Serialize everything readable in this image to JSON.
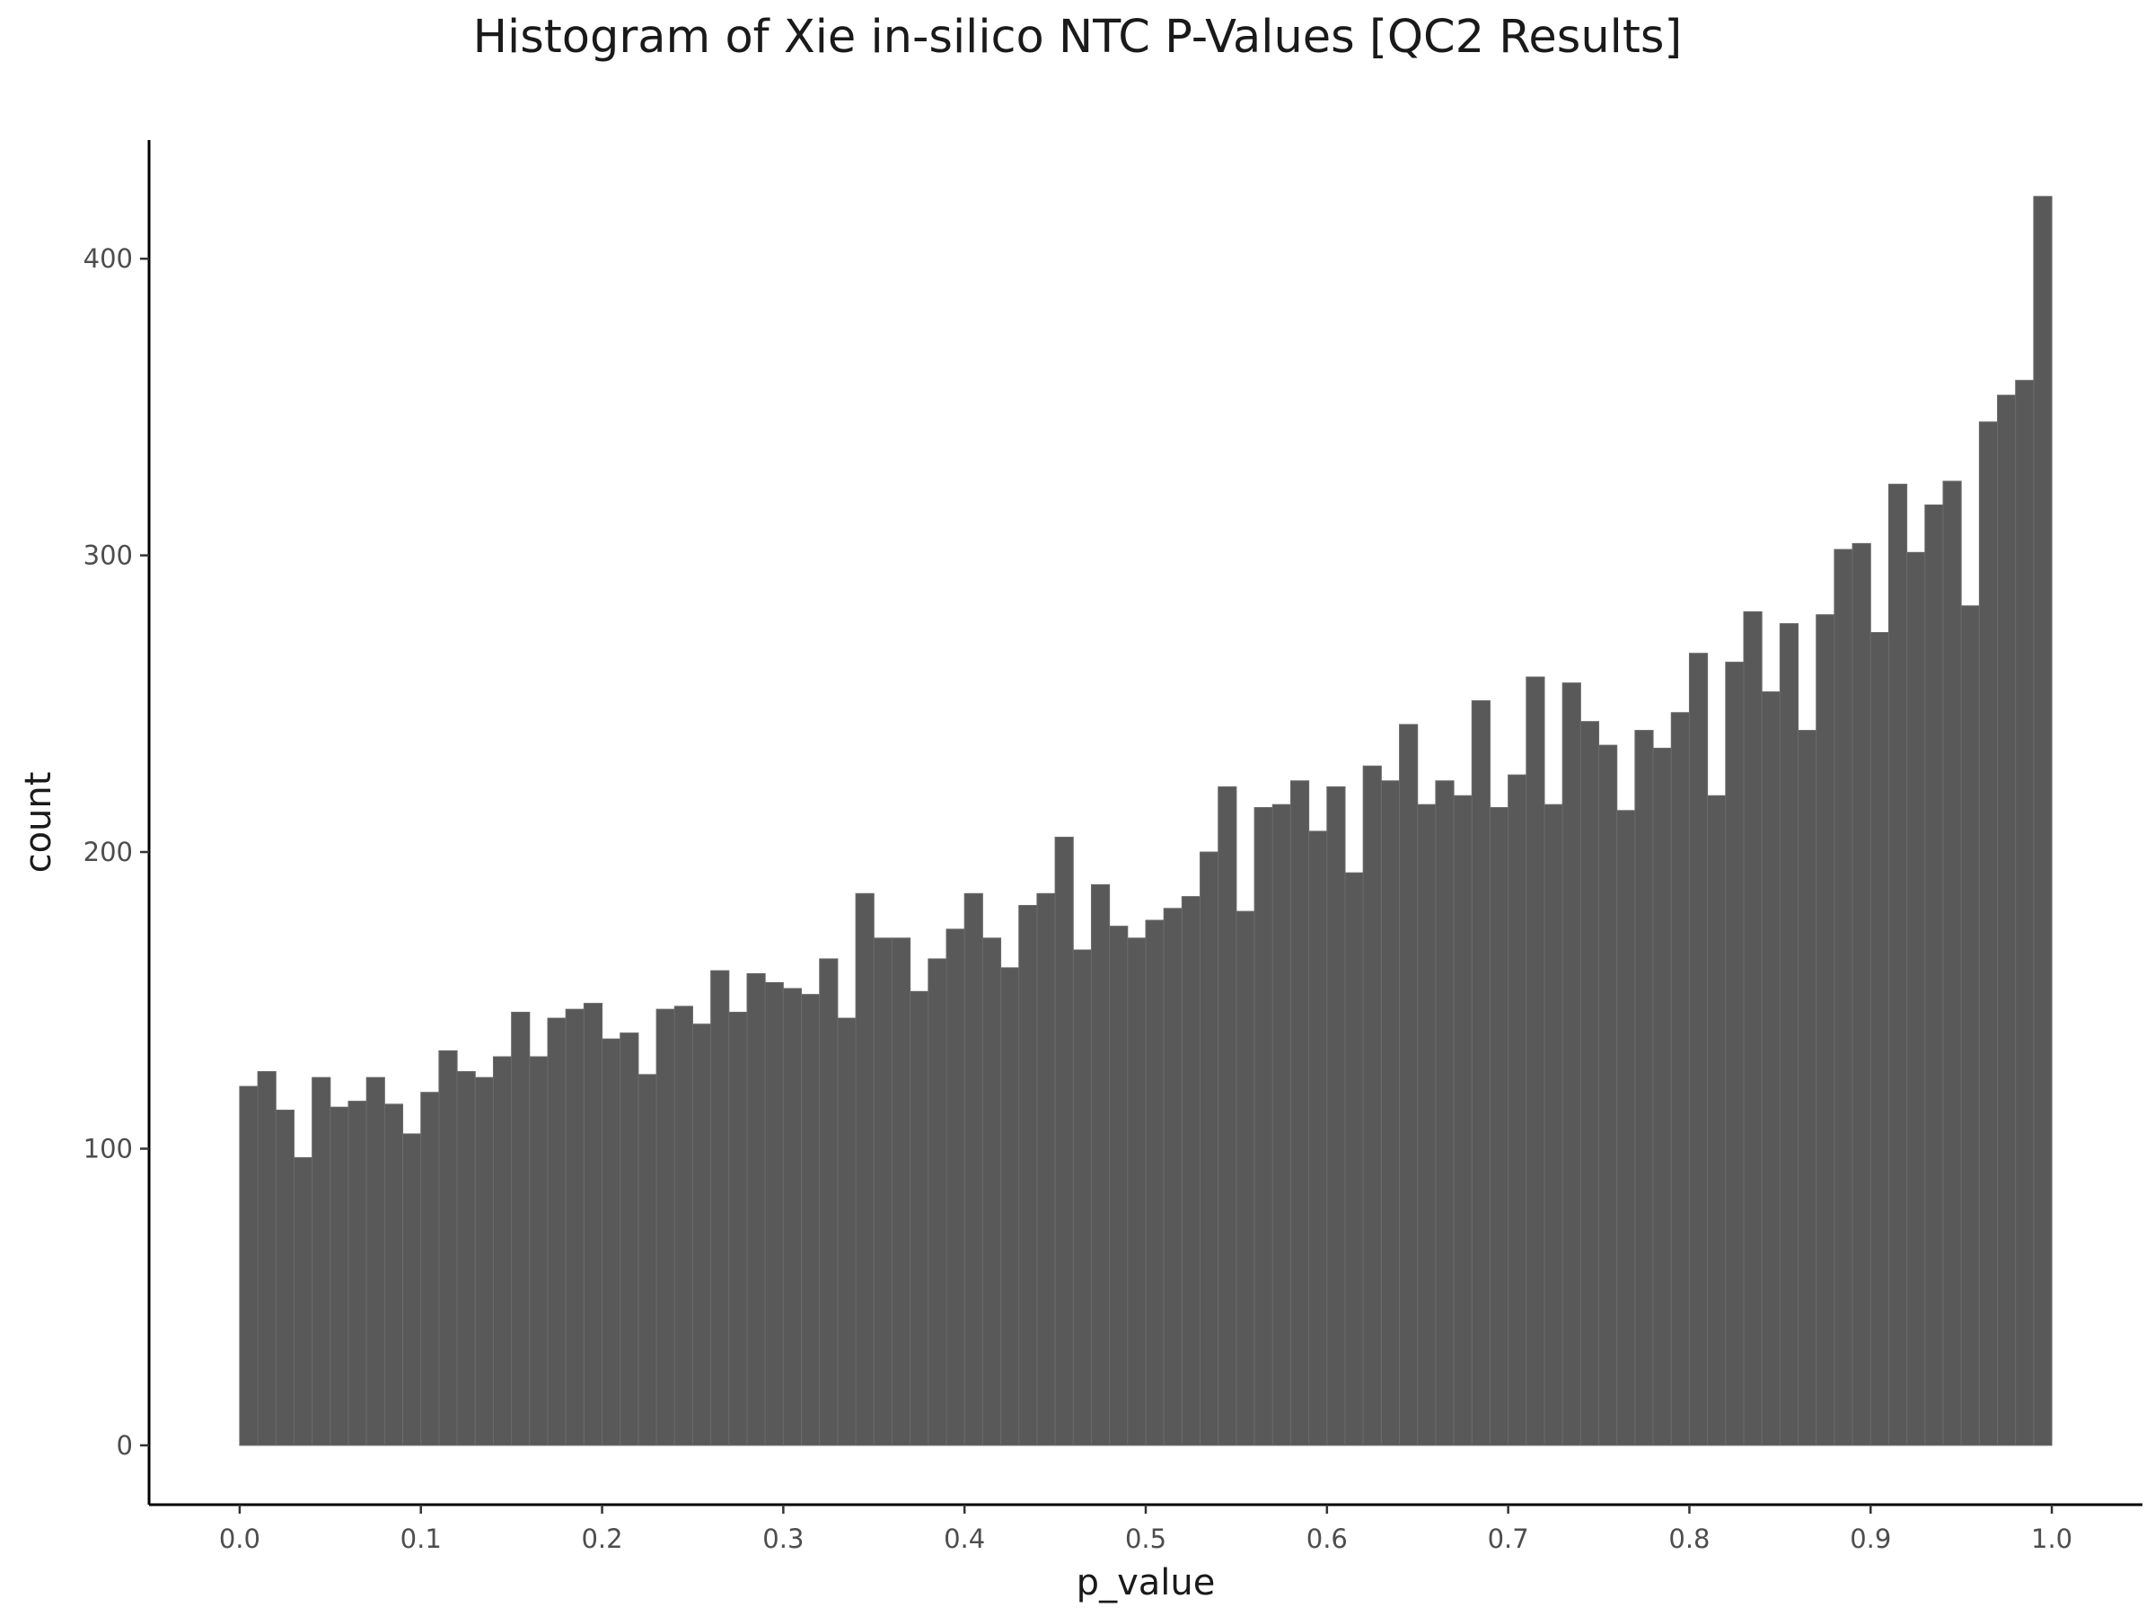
{
  "chart_data": {
    "type": "bar",
    "title": "Histogram of Xie in-silico NTC P-Values [QC2 Results]",
    "xlabel": "p_value",
    "ylabel": "count",
    "xlim": [
      -0.05,
      1.05
    ],
    "ylim": [
      -20,
      440
    ],
    "x_ticks": [
      "0.0",
      "0.1",
      "0.2",
      "0.3",
      "0.4",
      "0.5",
      "0.6",
      "0.7",
      "0.8",
      "0.9",
      "1.0"
    ],
    "y_ticks": [
      "0",
      "100",
      "200",
      "300",
      "400"
    ],
    "bin_range": [
      0,
      1
    ],
    "bin_count": 100,
    "values": [
      121,
      126,
      113,
      97,
      124,
      114,
      116,
      124,
      115,
      105,
      119,
      133,
      126,
      124,
      131,
      146,
      131,
      144,
      147,
      149,
      137,
      139,
      125,
      147,
      148,
      142,
      160,
      146,
      159,
      156,
      154,
      152,
      164,
      144,
      186,
      171,
      171,
      153,
      164,
      174,
      186,
      171,
      161,
      182,
      186,
      205,
      167,
      189,
      175,
      171,
      177,
      181,
      185,
      200,
      222,
      180,
      215,
      216,
      224,
      207,
      222,
      193,
      229,
      224,
      243,
      216,
      224,
      219,
      251,
      215,
      226,
      259,
      216,
      257,
      244,
      236,
      214,
      241,
      235,
      247,
      267,
      219,
      264,
      281,
      254,
      277,
      241,
      280,
      302,
      304,
      274,
      324,
      301,
      317,
      325,
      283,
      345,
      354,
      359,
      421
    ],
    "grid": false,
    "legend": "none",
    "bar_color": "#595959"
  }
}
